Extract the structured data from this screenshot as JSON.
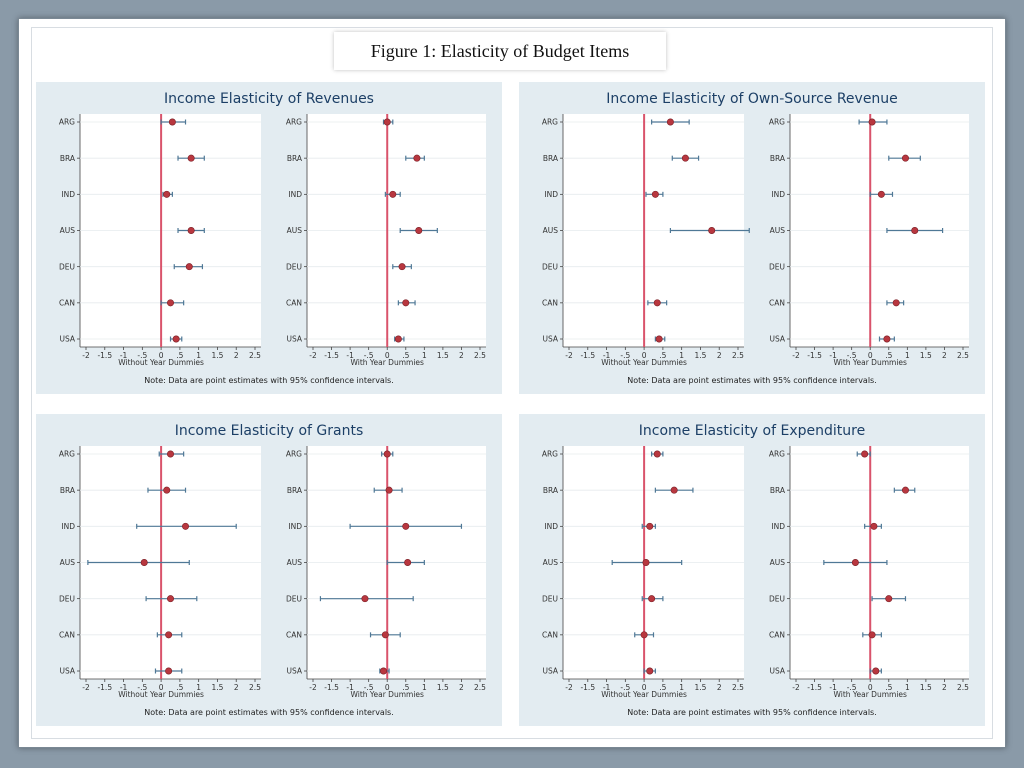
{
  "figure_title": "Figure 1: Elasticity of Budget Items",
  "chart_data": [
    {
      "type": "scatter",
      "title": "Income Elasticity of Revenues",
      "note": "Note: Data are point estimates with 95% confidence intervals.",
      "categories": [
        "ARG",
        "BRA",
        "IND",
        "AUS",
        "DEU",
        "CAN",
        "USA"
      ],
      "xlim": [
        -2,
        2.5
      ],
      "xticks": [
        "-2",
        "-1.5",
        "-1",
        "-.5",
        "0",
        ".5",
        "1",
        "1.5",
        "2",
        "2.5"
      ],
      "reference_line": 0,
      "series": [
        {
          "xlabel": "Without Year Dummies",
          "estimate": [
            0.3,
            0.8,
            0.15,
            0.8,
            0.75,
            0.25,
            0.4
          ],
          "ci_low": [
            0.0,
            0.45,
            0.05,
            0.45,
            0.35,
            0.0,
            0.25
          ],
          "ci_high": [
            0.65,
            1.15,
            0.3,
            1.15,
            1.1,
            0.6,
            0.55
          ]
        },
        {
          "xlabel": "With Year Dummies",
          "estimate": [
            0.0,
            0.8,
            0.15,
            0.85,
            0.4,
            0.5,
            0.3
          ],
          "ci_low": [
            -0.1,
            0.5,
            -0.05,
            0.35,
            0.15,
            0.3,
            0.2
          ],
          "ci_high": [
            0.15,
            1.0,
            0.35,
            1.35,
            0.65,
            0.75,
            0.45
          ]
        }
      ]
    },
    {
      "type": "scatter",
      "title": "Income Elasticity of Own-Source Revenue",
      "note": "Note: Data are point estimates with 95% confidence intervals.",
      "categories": [
        "ARG",
        "BRA",
        "IND",
        "AUS",
        "DEU",
        "CAN",
        "USA"
      ],
      "xlim": [
        -2,
        2.5
      ],
      "xticks": [
        "-2",
        "-1.5",
        "-1",
        "-.5",
        "0",
        ".5",
        "1",
        "1.5",
        "2",
        "2.5"
      ],
      "reference_line": 0,
      "series": [
        {
          "xlabel": "Without Year Dummies",
          "estimate": [
            0.7,
            1.1,
            0.3,
            1.8,
            null,
            0.35,
            0.4
          ],
          "ci_low": [
            0.2,
            0.75,
            0.05,
            0.7,
            null,
            0.1,
            0.3
          ],
          "ci_high": [
            1.2,
            1.45,
            0.5,
            2.8,
            null,
            0.6,
            0.55
          ]
        },
        {
          "xlabel": "With Year Dummies",
          "estimate": [
            0.05,
            0.95,
            0.3,
            1.2,
            null,
            0.7,
            0.45
          ],
          "ci_low": [
            -0.3,
            0.5,
            0.0,
            0.45,
            null,
            0.45,
            0.25
          ],
          "ci_high": [
            0.45,
            1.35,
            0.6,
            1.95,
            null,
            0.9,
            0.65
          ]
        }
      ]
    },
    {
      "type": "scatter",
      "title": "Income Elasticity of Grants",
      "note": "Note: Data are point estimates with 95% confidence intervals.",
      "categories": [
        "ARG",
        "BRA",
        "IND",
        "AUS",
        "DEU",
        "CAN",
        "USA"
      ],
      "xlim": [
        -2,
        2.5
      ],
      "xticks": [
        "-2",
        "-1.5",
        "-1",
        "-.5",
        "0",
        ".5",
        "1",
        "1.5",
        "2",
        "2.5"
      ],
      "reference_line": 0,
      "series": [
        {
          "xlabel": "Without Year Dummies",
          "estimate": [
            0.25,
            0.15,
            0.65,
            -0.45,
            0.25,
            0.2,
            0.2
          ],
          "ci_low": [
            -0.05,
            -0.35,
            -0.65,
            -1.95,
            -0.4,
            -0.1,
            -0.15
          ],
          "ci_high": [
            0.6,
            0.65,
            2.0,
            0.75,
            0.95,
            0.55,
            0.55
          ]
        },
        {
          "xlabel": "With Year Dummies",
          "estimate": [
            0.0,
            0.05,
            0.5,
            0.55,
            -0.6,
            -0.05,
            -0.1
          ],
          "ci_low": [
            -0.15,
            -0.35,
            -1.0,
            0.0,
            -1.8,
            -0.45,
            -0.2
          ],
          "ci_high": [
            0.15,
            0.4,
            2.0,
            1.0,
            0.7,
            0.35,
            0.05
          ]
        }
      ]
    },
    {
      "type": "scatter",
      "title": "Income Elasticity of Expenditure",
      "note": "Note: Data are point estimates with 95% confidence intervals.",
      "categories": [
        "ARG",
        "BRA",
        "IND",
        "AUS",
        "DEU",
        "CAN",
        "USA"
      ],
      "xlim": [
        -2,
        2.5
      ],
      "xticks": [
        "-2",
        "-1.5",
        "-1",
        "-.5",
        "0",
        ".5",
        "1",
        "1.5",
        "2",
        "2.5"
      ],
      "reference_line": 0,
      "series": [
        {
          "xlabel": "Without Year Dummies",
          "estimate": [
            0.35,
            0.8,
            0.15,
            0.05,
            0.2,
            0.0,
            0.15
          ],
          "ci_low": [
            0.2,
            0.3,
            -0.05,
            -0.85,
            -0.05,
            -0.25,
            0.0
          ],
          "ci_high": [
            0.5,
            1.3,
            0.3,
            1.0,
            0.5,
            0.25,
            0.3
          ]
        },
        {
          "xlabel": "With Year Dummies",
          "estimate": [
            -0.15,
            0.95,
            0.1,
            -0.4,
            0.5,
            0.05,
            0.15
          ],
          "ci_low": [
            -0.35,
            0.65,
            -0.15,
            -1.25,
            0.05,
            -0.2,
            0.0
          ],
          "ci_high": [
            0.0,
            1.2,
            0.3,
            0.45,
            0.95,
            0.3,
            0.3
          ]
        }
      ]
    }
  ],
  "colors": {
    "reference_line": "#d9536b",
    "marker": "#b8373f",
    "ci_line": "#4f7896",
    "title": "#1c3f66",
    "panel_bg": "#e3ecf1"
  }
}
